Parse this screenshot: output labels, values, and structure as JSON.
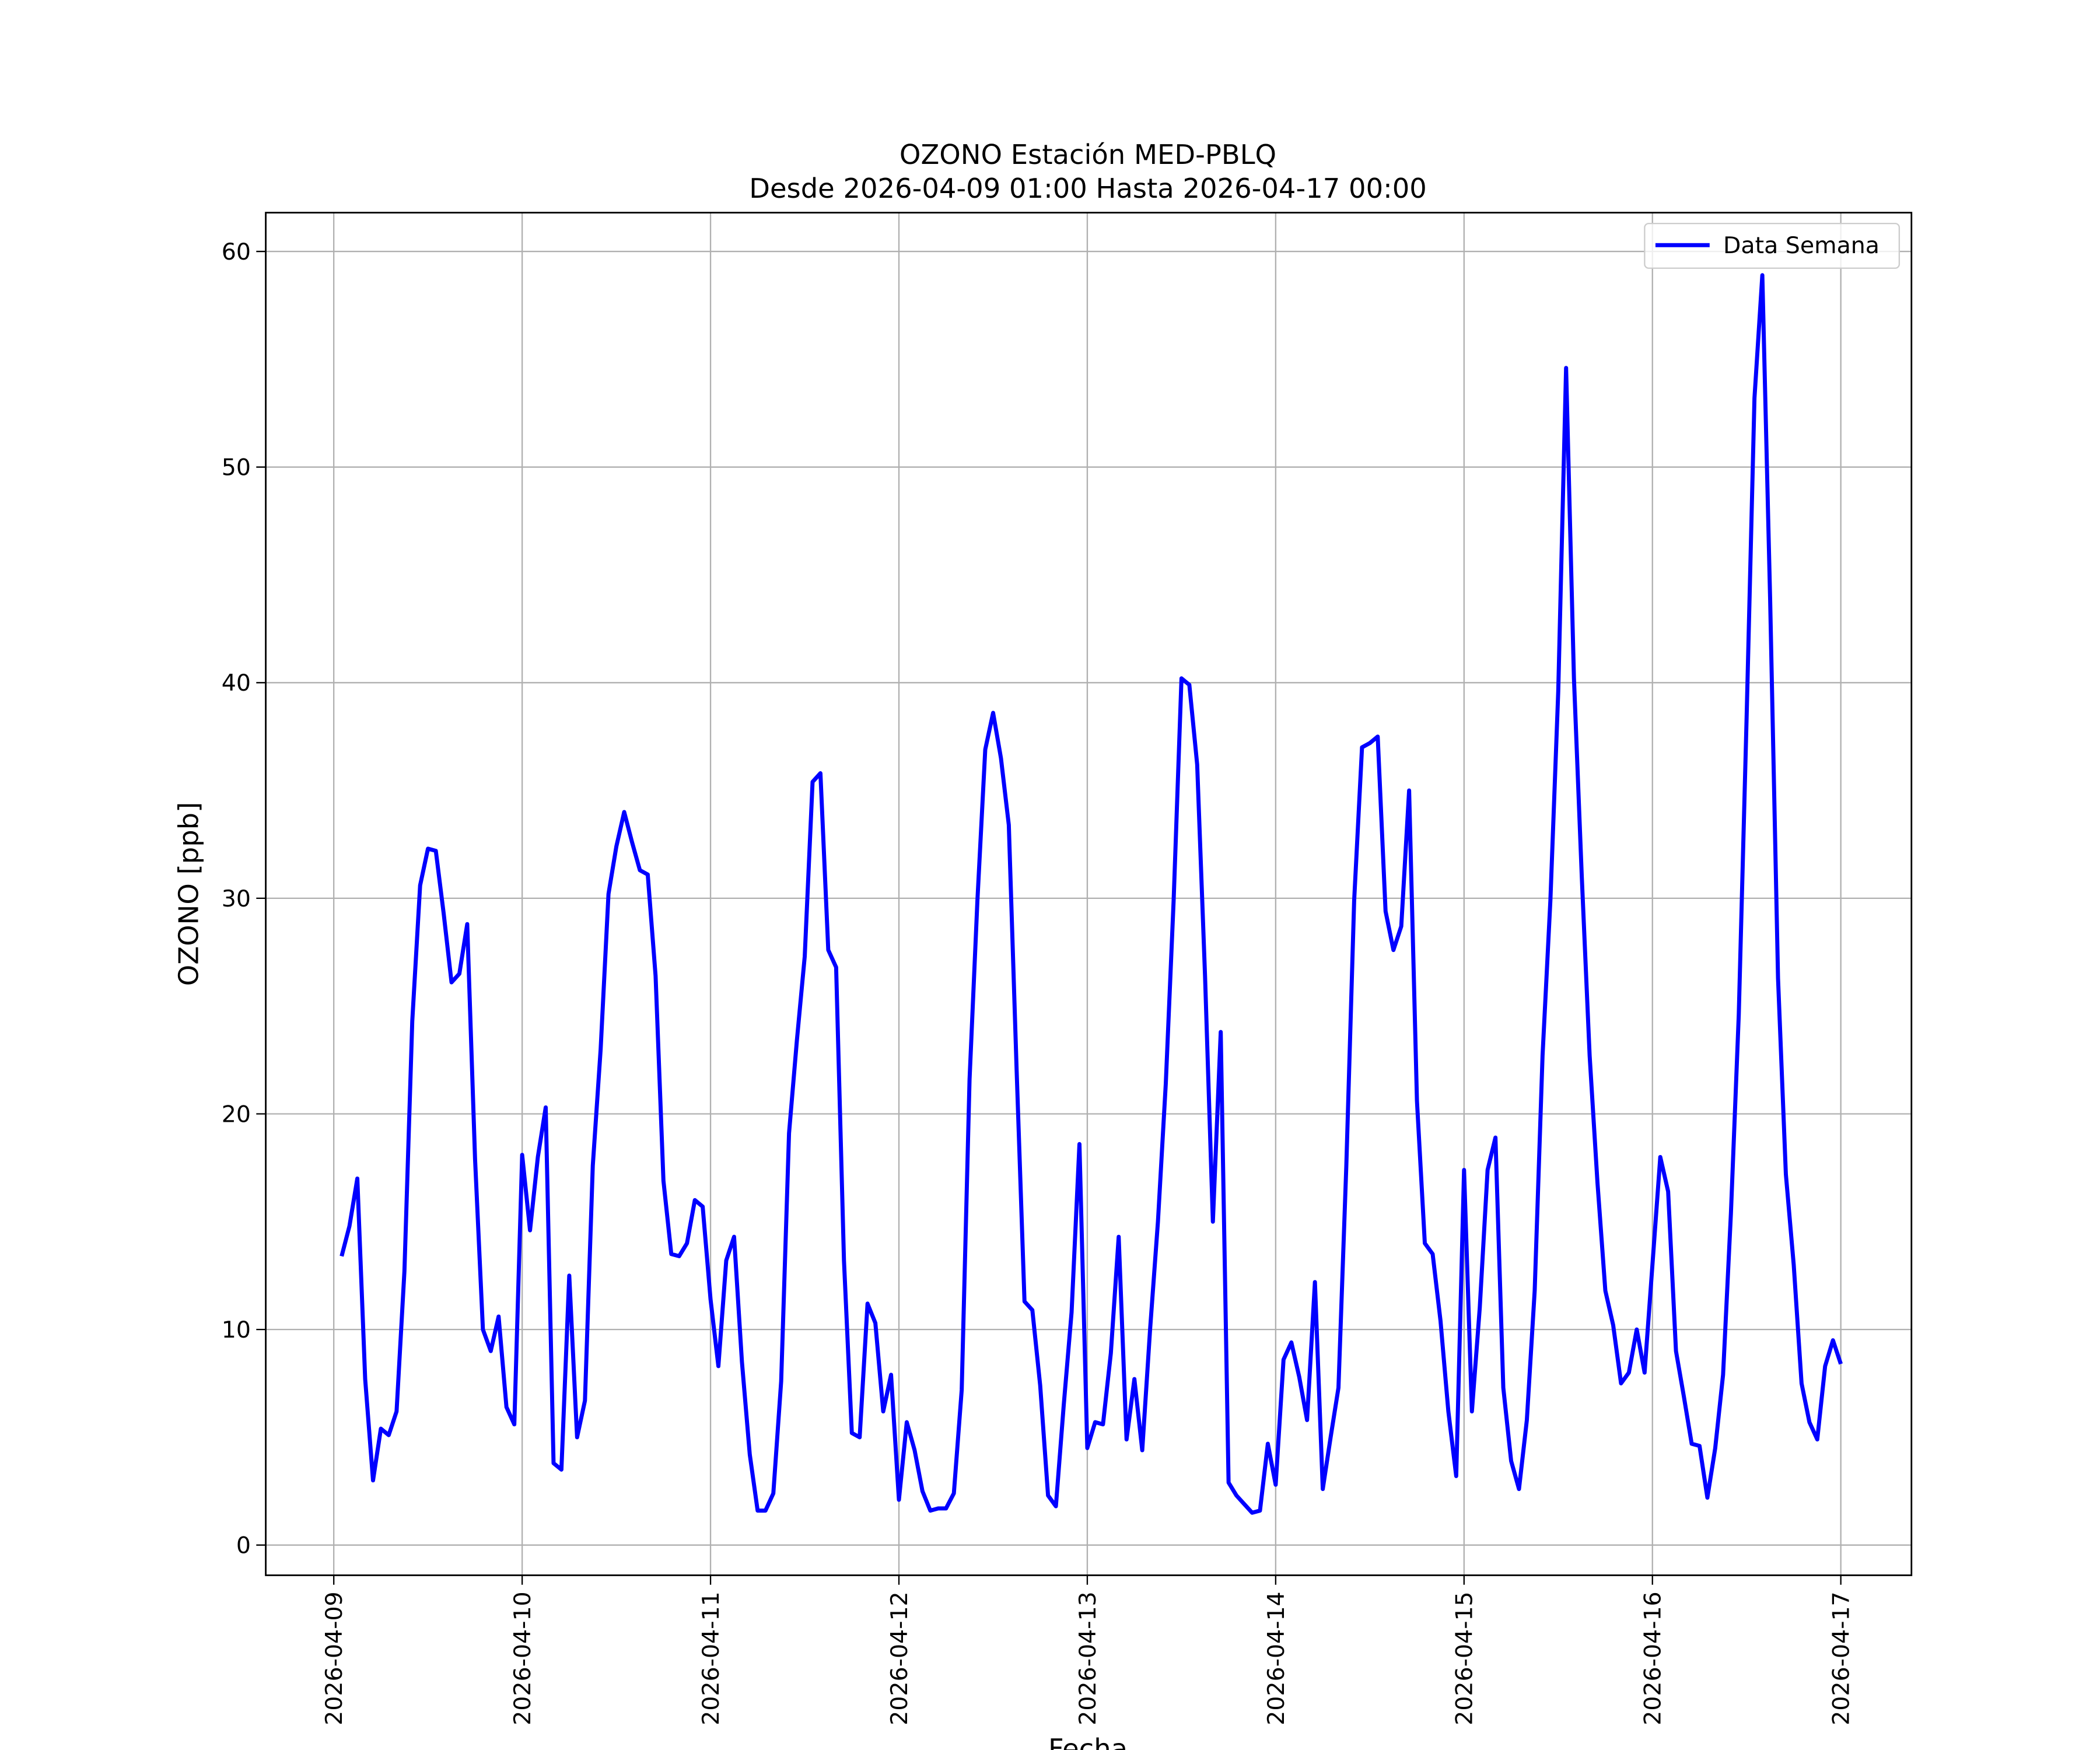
{
  "chart_data": {
    "type": "line",
    "title": "OZONO Estación MED-PBLQ",
    "subtitle": "Desde 2026-04-09 01:00 Hasta 2026-04-17 00:00",
    "x_label": "Fecha",
    "y_label": "OZONO [ppb]",
    "legend": "upper right",
    "grid": true,
    "xlim": [
      "2026-04-08 15:20",
      "2026-04-17 09:00"
    ],
    "xticks": [
      "2026-04-09",
      "2026-04-10",
      "2026-04-11",
      "2026-04-12",
      "2026-04-13",
      "2026-04-14",
      "2026-04-15",
      "2026-04-16",
      "2026-04-17"
    ],
    "ylim": [
      -1.4,
      61.8
    ],
    "yticks": [
      0,
      10,
      20,
      30,
      40,
      50,
      60
    ],
    "x": [
      "2026-04-09 01:00",
      "2026-04-09 02:00",
      "2026-04-09 03:00",
      "2026-04-09 04:00",
      "2026-04-09 05:00",
      "2026-04-09 06:00",
      "2026-04-09 07:00",
      "2026-04-09 08:00",
      "2026-04-09 09:00",
      "2026-04-09 10:00",
      "2026-04-09 11:00",
      "2026-04-09 12:00",
      "2026-04-09 13:00",
      "2026-04-09 14:00",
      "2026-04-09 15:00",
      "2026-04-09 16:00",
      "2026-04-09 17:00",
      "2026-04-09 18:00",
      "2026-04-09 19:00",
      "2026-04-09 20:00",
      "2026-04-09 21:00",
      "2026-04-09 22:00",
      "2026-04-09 23:00",
      "2026-04-10 00:00",
      "2026-04-10 01:00",
      "2026-04-10 02:00",
      "2026-04-10 03:00",
      "2026-04-10 04:00",
      "2026-04-10 05:00",
      "2026-04-10 06:00",
      "2026-04-10 07:00",
      "2026-04-10 08:00",
      "2026-04-10 09:00",
      "2026-04-10 10:00",
      "2026-04-10 11:00",
      "2026-04-10 12:00",
      "2026-04-10 13:00",
      "2026-04-10 14:00",
      "2026-04-10 15:00",
      "2026-04-10 16:00",
      "2026-04-10 17:00",
      "2026-04-10 18:00",
      "2026-04-10 19:00",
      "2026-04-10 20:00",
      "2026-04-10 21:00",
      "2026-04-10 22:00",
      "2026-04-10 23:00",
      "2026-04-11 00:00",
      "2026-04-11 01:00",
      "2026-04-11 02:00",
      "2026-04-11 03:00",
      "2026-04-11 04:00",
      "2026-04-11 05:00",
      "2026-04-11 06:00",
      "2026-04-11 07:00",
      "2026-04-11 08:00",
      "2026-04-11 09:00",
      "2026-04-11 10:00",
      "2026-04-11 11:00",
      "2026-04-11 12:00",
      "2026-04-11 13:00",
      "2026-04-11 14:00",
      "2026-04-11 15:00",
      "2026-04-11 16:00",
      "2026-04-11 17:00",
      "2026-04-11 18:00",
      "2026-04-11 19:00",
      "2026-04-11 20:00",
      "2026-04-11 21:00",
      "2026-04-11 22:00",
      "2026-04-11 23:00",
      "2026-04-12 00:00",
      "2026-04-12 01:00",
      "2026-04-12 02:00",
      "2026-04-12 03:00",
      "2026-04-12 04:00",
      "2026-04-12 05:00",
      "2026-04-12 06:00",
      "2026-04-12 07:00",
      "2026-04-12 08:00",
      "2026-04-12 09:00",
      "2026-04-12 10:00",
      "2026-04-12 11:00",
      "2026-04-12 12:00",
      "2026-04-12 13:00",
      "2026-04-12 14:00",
      "2026-04-12 15:00",
      "2026-04-12 16:00",
      "2026-04-12 17:00",
      "2026-04-12 18:00",
      "2026-04-12 19:00",
      "2026-04-12 20:00",
      "2026-04-12 21:00",
      "2026-04-12 22:00",
      "2026-04-12 23:00",
      "2026-04-13 00:00",
      "2026-04-13 01:00",
      "2026-04-13 02:00",
      "2026-04-13 03:00",
      "2026-04-13 04:00",
      "2026-04-13 05:00",
      "2026-04-13 06:00",
      "2026-04-13 07:00",
      "2026-04-13 08:00",
      "2026-04-13 09:00",
      "2026-04-13 10:00",
      "2026-04-13 11:00",
      "2026-04-13 12:00",
      "2026-04-13 13:00",
      "2026-04-13 14:00",
      "2026-04-13 15:00",
      "2026-04-13 16:00",
      "2026-04-13 17:00",
      "2026-04-13 18:00",
      "2026-04-13 19:00",
      "2026-04-13 20:00",
      "2026-04-13 21:00",
      "2026-04-13 22:00",
      "2026-04-13 23:00",
      "2026-04-14 00:00",
      "2026-04-14 01:00",
      "2026-04-14 02:00",
      "2026-04-14 03:00",
      "2026-04-14 04:00",
      "2026-04-14 05:00",
      "2026-04-14 06:00",
      "2026-04-14 07:00",
      "2026-04-14 08:00",
      "2026-04-14 09:00",
      "2026-04-14 10:00",
      "2026-04-14 11:00",
      "2026-04-14 12:00",
      "2026-04-14 13:00",
      "2026-04-14 14:00",
      "2026-04-14 15:00",
      "2026-04-14 16:00",
      "2026-04-14 17:00",
      "2026-04-14 18:00",
      "2026-04-14 19:00",
      "2026-04-14 20:00",
      "2026-04-14 21:00",
      "2026-04-14 22:00",
      "2026-04-14 23:00",
      "2026-04-15 00:00",
      "2026-04-15 01:00",
      "2026-04-15 02:00",
      "2026-04-15 03:00",
      "2026-04-15 04:00",
      "2026-04-15 05:00",
      "2026-04-15 06:00",
      "2026-04-15 07:00",
      "2026-04-15 08:00",
      "2026-04-15 09:00",
      "2026-04-15 10:00",
      "2026-04-15 11:00",
      "2026-04-15 12:00",
      "2026-04-15 13:00",
      "2026-04-15 14:00",
      "2026-04-15 15:00",
      "2026-04-15 16:00",
      "2026-04-15 17:00",
      "2026-04-15 18:00",
      "2026-04-15 19:00",
      "2026-04-15 20:00",
      "2026-04-15 21:00",
      "2026-04-15 22:00",
      "2026-04-15 23:00",
      "2026-04-16 00:00",
      "2026-04-16 01:00",
      "2026-04-16 02:00",
      "2026-04-16 03:00",
      "2026-04-16 04:00",
      "2026-04-16 05:00",
      "2026-04-16 06:00",
      "2026-04-16 07:00",
      "2026-04-16 08:00",
      "2026-04-16 09:00",
      "2026-04-16 10:00",
      "2026-04-16 11:00",
      "2026-04-16 12:00",
      "2026-04-16 13:00",
      "2026-04-16 14:00",
      "2026-04-16 15:00",
      "2026-04-16 16:00",
      "2026-04-16 17:00",
      "2026-04-16 18:00",
      "2026-04-16 19:00",
      "2026-04-16 20:00",
      "2026-04-16 21:00",
      "2026-04-16 22:00",
      "2026-04-16 23:00",
      "2026-04-17 00:00"
    ],
    "series": [
      {
        "name": "Data Semana",
        "color": "#0000ff",
        "values": [
          13.4,
          14.8,
          17.0,
          7.7,
          3.0,
          5.4,
          5.1,
          6.2,
          12.7,
          24.3,
          30.6,
          32.3,
          32.2,
          29.3,
          26.1,
          26.5,
          28.8,
          17.9,
          10.0,
          9.0,
          10.6,
          6.4,
          5.6,
          18.1,
          14.6,
          18.0,
          20.3,
          3.8,
          3.5,
          12.5,
          5.0,
          6.7,
          17.6,
          23.0,
          30.2,
          32.4,
          34.0,
          32.6,
          31.3,
          31.1,
          26.4,
          16.9,
          13.5,
          13.4,
          14.0,
          16.0,
          15.7,
          11.4,
          8.3,
          13.2,
          14.3,
          8.5,
          4.2,
          1.6,
          1.6,
          2.4,
          7.6,
          19.1,
          23.4,
          27.3,
          35.4,
          35.8,
          27.6,
          26.8,
          13.2,
          5.2,
          5.0,
          11.2,
          10.3,
          6.2,
          7.9,
          2.1,
          5.7,
          4.4,
          2.5,
          1.6,
          1.7,
          1.7,
          2.4,
          7.2,
          21.6,
          29.9,
          36.9,
          38.6,
          36.5,
          33.4,
          22.0,
          11.3,
          10.9,
          7.4,
          2.3,
          1.8,
          6.5,
          10.8,
          18.6,
          4.5,
          5.7,
          5.6,
          8.9,
          14.3,
          4.9,
          7.7,
          4.4,
          10.0,
          15.0,
          21.4,
          29.9,
          40.2,
          39.9,
          36.2,
          26.4,
          15.0,
          23.8,
          2.9,
          2.3,
          1.9,
          1.5,
          1.6,
          4.7,
          2.8,
          8.6,
          9.4,
          7.8,
          5.8,
          12.2,
          2.6,
          5.0,
          7.3,
          17.6,
          29.9,
          37.0,
          37.2,
          37.5,
          29.4,
          27.6,
          28.7,
          35.0,
          20.6,
          14.0,
          13.5,
          10.4,
          6.2,
          3.2,
          17.4,
          6.2,
          11.0,
          17.4,
          18.9,
          7.3,
          3.9,
          2.6,
          5.8,
          11.8,
          22.7,
          29.9,
          39.6,
          54.6,
          40.2,
          31.0,
          22.7,
          16.8,
          11.8,
          10.2,
          7.5,
          8.0,
          10.0,
          8.0,
          13.0,
          18.0,
          16.4,
          9.0,
          6.9,
          4.7,
          4.6,
          2.2,
          4.5,
          7.9,
          15.4,
          24.6,
          38.4,
          53.2,
          58.9,
          43.8,
          26.3,
          17.2,
          13.0,
          7.5,
          5.7,
          4.9,
          8.3,
          9.5,
          8.4
        ]
      }
    ]
  }
}
